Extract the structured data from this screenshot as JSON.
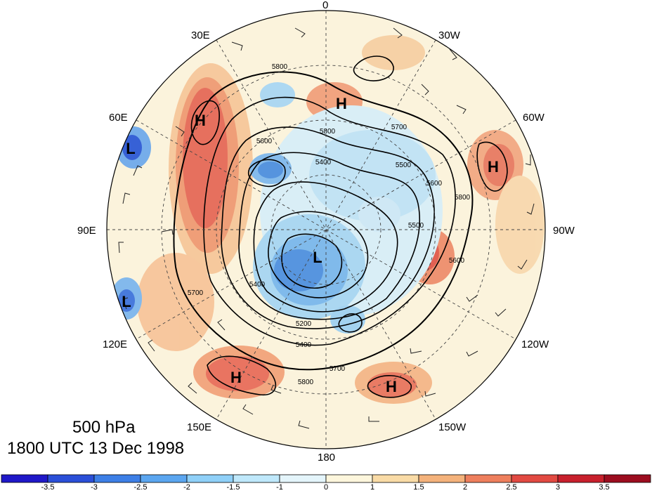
{
  "title": {
    "level": "500 hPa",
    "time": "1800 UTC 13 Dec 1998"
  },
  "longitude_labels": {
    "top": "0",
    "top_right_1": "30W",
    "top_right_2": "60W",
    "right": "90W",
    "bottom_right_1": "120W",
    "bottom_right_2": "150W",
    "bottom": "180",
    "bottom_left_2": "150E",
    "bottom_left_1": "120E",
    "left": "90E",
    "top_left_2": "60E",
    "top_left_1": "30E"
  },
  "pressure_centers": [
    {
      "type": "H"
    },
    {
      "type": "H"
    },
    {
      "type": "H"
    },
    {
      "type": "H"
    },
    {
      "type": "H"
    },
    {
      "type": "L"
    },
    {
      "type": "L"
    },
    {
      "type": "L"
    }
  ],
  "contour_labels": [
    "5800",
    "5800",
    "5700",
    "5600",
    "5400",
    "5500",
    "5600",
    "5800",
    "5500",
    "5600",
    "5700",
    "5400",
    "5200",
    "5400",
    "5700",
    "5800"
  ],
  "colorbar": {
    "ticks": [
      "-3.5",
      "-3",
      "-2.5",
      "-2",
      "-1.5",
      "-1",
      "0",
      "1",
      "1.5",
      "2",
      "2.5",
      "3",
      "3.5"
    ],
    "colors": [
      "#1f18c8",
      "#2a4fd8",
      "#3d7fe6",
      "#5ba6f0",
      "#8fd0f8",
      "#bfe8fb",
      "#e4f5fb",
      "#fdf6dc",
      "#f9dba6",
      "#f4b27b",
      "#ee7f5d",
      "#e24a42",
      "#c8202c",
      "#9c0d1f"
    ]
  }
}
